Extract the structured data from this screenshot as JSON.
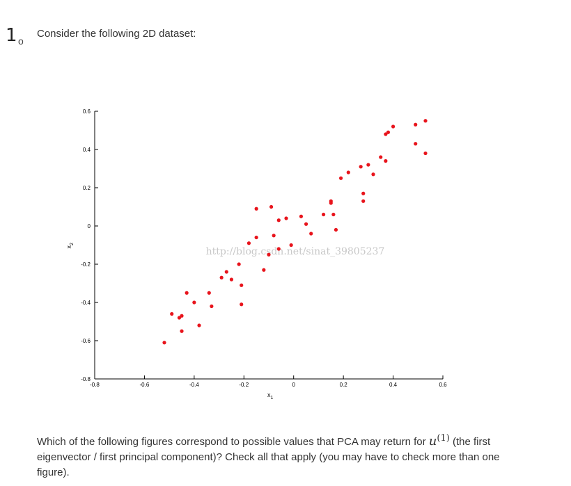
{
  "question": {
    "number": "1",
    "number_mark": "o",
    "intro": "Consider the following 2D dataset:",
    "text_before": "Which of the following figures correspond to possible values that PCA may return for ",
    "math_symbol": "u",
    "math_superscript": "(1)",
    "text_after": " (the first eigenvector / first principal component)? Check all that apply (you may have to check more than one figure)."
  },
  "watermark": "http://blog.csdn.net/sinat_39805237",
  "chart_data": {
    "type": "scatter",
    "xlabel": "x1",
    "ylabel": "x2",
    "xlim": [
      -0.8,
      0.6
    ],
    "ylim": [
      -0.8,
      0.6
    ],
    "x_ticks": [
      "-0.8",
      "-0.6",
      "-0.4",
      "-0.2",
      "0",
      "0.2",
      "0.4",
      "0.6"
    ],
    "y_ticks": [
      "-0.8",
      "-0.6",
      "-0.4",
      "-0.2",
      "0",
      "0.2",
      "0.4",
      "0.6"
    ],
    "marker_color": "#e8141c",
    "grid": false,
    "points": [
      [
        -0.52,
        -0.61
      ],
      [
        -0.49,
        -0.46
      ],
      [
        -0.46,
        -0.48
      ],
      [
        -0.45,
        -0.47
      ],
      [
        -0.45,
        -0.55
      ],
      [
        -0.43,
        -0.35
      ],
      [
        -0.4,
        -0.4
      ],
      [
        -0.38,
        -0.52
      ],
      [
        -0.34,
        -0.35
      ],
      [
        -0.33,
        -0.42
      ],
      [
        -0.29,
        -0.27
      ],
      [
        -0.27,
        -0.24
      ],
      [
        -0.25,
        -0.28
      ],
      [
        -0.22,
        -0.2
      ],
      [
        -0.21,
        -0.31
      ],
      [
        -0.21,
        -0.41
      ],
      [
        -0.18,
        -0.09
      ],
      [
        -0.15,
        -0.06
      ],
      [
        -0.15,
        0.09
      ],
      [
        -0.12,
        -0.23
      ],
      [
        -0.1,
        -0.15
      ],
      [
        -0.09,
        0.1
      ],
      [
        -0.08,
        -0.05
      ],
      [
        -0.06,
        0.03
      ],
      [
        -0.06,
        -0.12
      ],
      [
        -0.03,
        0.04
      ],
      [
        -0.01,
        -0.1
      ],
      [
        0.03,
        0.05
      ],
      [
        0.05,
        0.01
      ],
      [
        0.07,
        -0.04
      ],
      [
        0.12,
        0.06
      ],
      [
        0.15,
        0.13
      ],
      [
        0.15,
        0.12
      ],
      [
        0.16,
        0.06
      ],
      [
        0.17,
        -0.02
      ],
      [
        0.19,
        0.25
      ],
      [
        0.22,
        0.28
      ],
      [
        0.27,
        0.31
      ],
      [
        0.28,
        0.17
      ],
      [
        0.28,
        0.13
      ],
      [
        0.3,
        0.32
      ],
      [
        0.32,
        0.27
      ],
      [
        0.35,
        0.36
      ],
      [
        0.37,
        0.34
      ],
      [
        0.37,
        0.48
      ],
      [
        0.38,
        0.49
      ],
      [
        0.4,
        0.52
      ],
      [
        0.49,
        0.53
      ],
      [
        0.49,
        0.43
      ],
      [
        0.53,
        0.55
      ],
      [
        0.53,
        0.38
      ]
    ]
  }
}
